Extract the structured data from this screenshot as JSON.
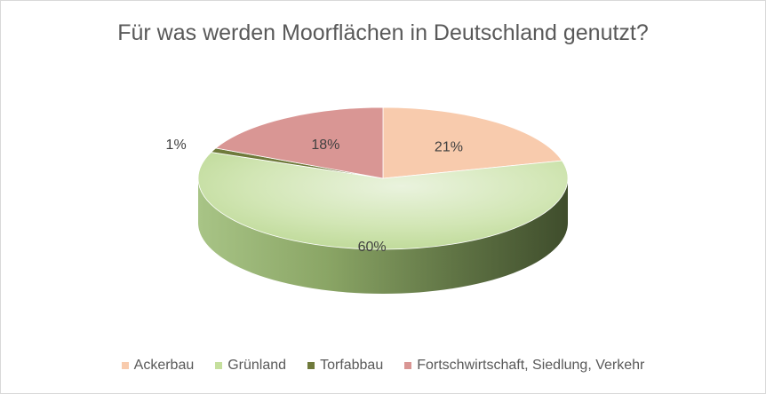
{
  "chart_data": {
    "type": "pie",
    "title": "Für was werden Moorflächen in Deutschland genutzt?",
    "categories": [
      "Ackerbau",
      "Grünland",
      "Torfabbau",
      "Fortschwirtschaft, Siedlung, Verkehr"
    ],
    "values": [
      21,
      60,
      1,
      18
    ],
    "labels": [
      "21%",
      "60%",
      "1%",
      "18%"
    ],
    "colors": [
      "#f8cbad",
      "#c5df9d",
      "#6f7a3b",
      "#d99694"
    ],
    "style": "3d",
    "legend": "bottom"
  }
}
